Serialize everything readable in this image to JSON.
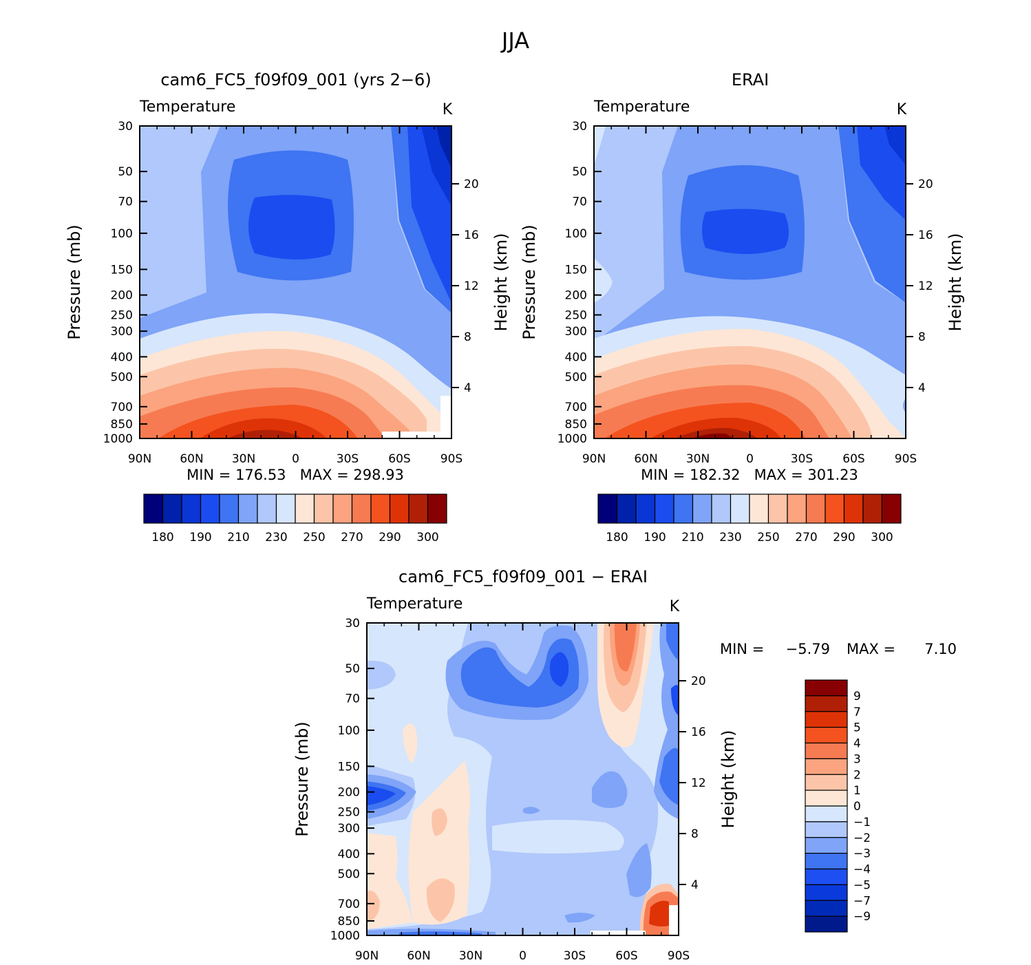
{
  "figure_title": "JJA",
  "colors": {
    "abs_palette": [
      "#00007a",
      "#0022aa",
      "#0a36d6",
      "#1a4cf0",
      "#3f74f2",
      "#7fa4f8",
      "#b0c8fb",
      "#d6e6fc",
      "#fde6d6",
      "#fcc5a9",
      "#fba47f",
      "#f77b52",
      "#f4531f",
      "#de3307",
      "#b02006",
      "#870002"
    ],
    "diff_palette": [
      "#001a8c",
      "#002bb8",
      "#0a3adb",
      "#1e4ff2",
      "#3f74f2",
      "#7fa4f8",
      "#b0c8fb",
      "#d6e6fc",
      "#fde6d6",
      "#fcc5a9",
      "#fba47f",
      "#f77b52",
      "#f4531f",
      "#de3307",
      "#b02006",
      "#870002"
    ]
  },
  "chart_data": [
    {
      "type": "heatmap",
      "title": "cam6_FC5_f09f09_001 (yrs 2−6)",
      "left_label": "Temperature",
      "right_label": "K",
      "ylabel": "Pressure (mb)",
      "ylabel_right": "Height (km)",
      "x_ticks": [
        "90N",
        "60N",
        "30N",
        "0",
        "30S",
        "60S",
        "90S"
      ],
      "y_ticks": [
        "30",
        "50",
        "70",
        "100",
        "150",
        "200",
        "250",
        "300",
        "400",
        "500",
        "700",
        "850",
        "1000"
      ],
      "height_ticks": [
        "20",
        "16",
        "12",
        "8",
        "4"
      ],
      "stats": {
        "min_label": "MIN =",
        "min": "176.53",
        "max_label": "MAX =",
        "max": "298.93"
      },
      "colorbar_labels": [
        "180",
        "190",
        "210",
        "230",
        "250",
        "270",
        "290",
        "300"
      ]
    },
    {
      "type": "heatmap",
      "title": "ERAI",
      "left_label": "Temperature",
      "right_label": "K",
      "ylabel": "Pressure (mb)",
      "ylabel_right": "Height (km)",
      "x_ticks": [
        "90N",
        "60N",
        "30N",
        "0",
        "30S",
        "60S",
        "90S"
      ],
      "y_ticks": [
        "30",
        "50",
        "70",
        "100",
        "150",
        "200",
        "250",
        "300",
        "400",
        "500",
        "700",
        "850",
        "1000"
      ],
      "height_ticks": [
        "20",
        "16",
        "12",
        "8",
        "4"
      ],
      "stats": {
        "min_label": "MIN =",
        "min": "182.32",
        "max_label": "MAX =",
        "max": "301.23"
      },
      "colorbar_labels": [
        "180",
        "190",
        "210",
        "230",
        "250",
        "270",
        "290",
        "300"
      ]
    },
    {
      "type": "heatmap",
      "title": "cam6_FC5_f09f09_001 − ERAI",
      "left_label": "Temperature",
      "right_label": "K",
      "ylabel": "Pressure (mb)",
      "ylabel_right": "Height (km)",
      "x_ticks": [
        "90N",
        "60N",
        "30N",
        "0",
        "30S",
        "60S",
        "90S"
      ],
      "y_ticks": [
        "30",
        "50",
        "70",
        "100",
        "150",
        "200",
        "250",
        "300",
        "400",
        "500",
        "700",
        "850",
        "1000"
      ],
      "height_ticks": [
        "20",
        "16",
        "12",
        "8",
        "4"
      ],
      "stats": {
        "min_label": "MIN =",
        "min": "−5.79",
        "max_label": "MAX =",
        "max": "7.10"
      },
      "colorbar_labels": [
        "9",
        "7",
        "5",
        "4",
        "3",
        "2",
        "1",
        "0",
        "−1",
        "−2",
        "−3",
        "−4",
        "−5",
        "−7",
        "−9"
      ]
    }
  ]
}
